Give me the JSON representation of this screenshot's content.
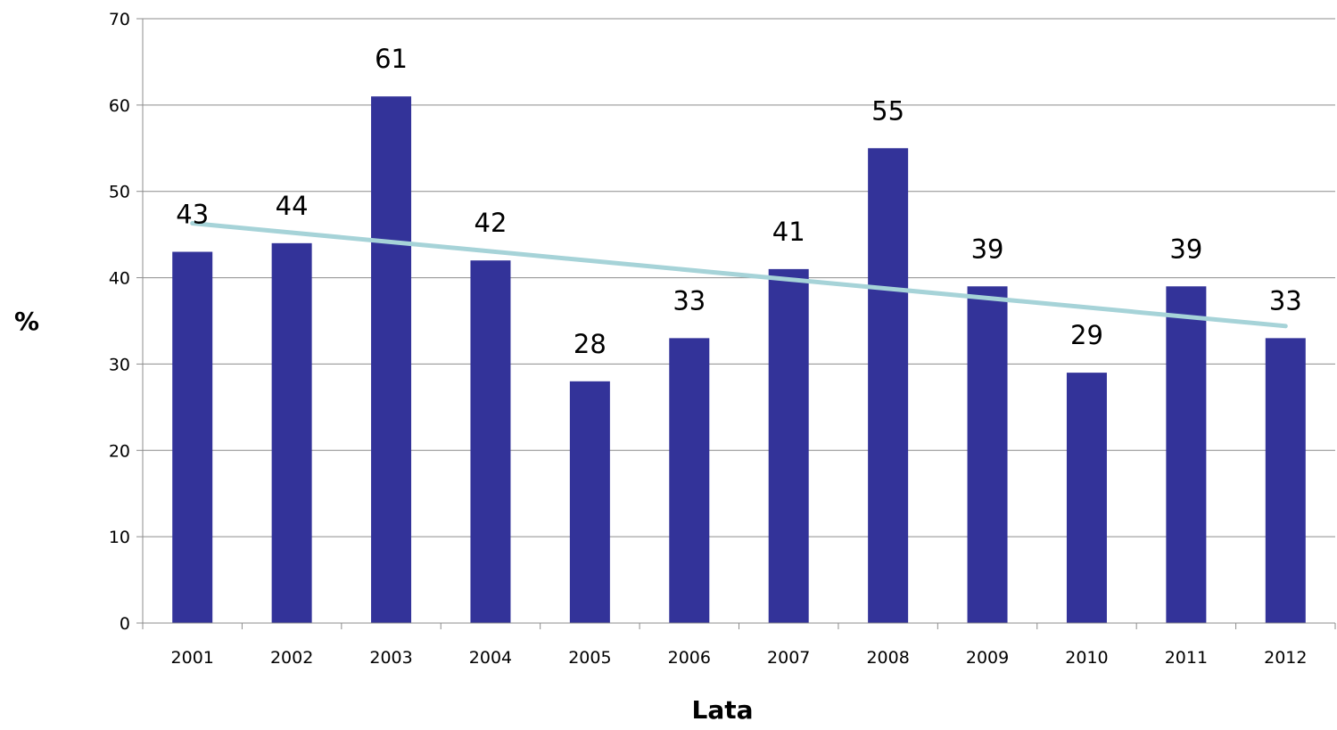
{
  "chart_data": {
    "type": "bar",
    "categories": [
      "2001",
      "2002",
      "2003",
      "2004",
      "2005",
      "2006",
      "2007",
      "2008",
      "2009",
      "2010",
      "2011",
      "2012"
    ],
    "values": [
      43,
      44,
      61,
      42,
      28,
      33,
      41,
      55,
      39,
      29,
      39,
      33
    ],
    "data_labels": [
      "43",
      "44",
      "61",
      "42",
      "28",
      "33",
      "41",
      "55",
      "39",
      "29",
      "39",
      "33"
    ],
    "xlabel": "Lata",
    "ylabel": "%",
    "ylim": [
      0,
      70
    ],
    "yticks": [
      0,
      10,
      20,
      30,
      40,
      50,
      60,
      70
    ],
    "grid": true,
    "bar_color": "#333399",
    "trendline": {
      "type": "linear",
      "start_value": 46.3,
      "end_value": 34.4,
      "color": "#a6d3d8"
    }
  }
}
